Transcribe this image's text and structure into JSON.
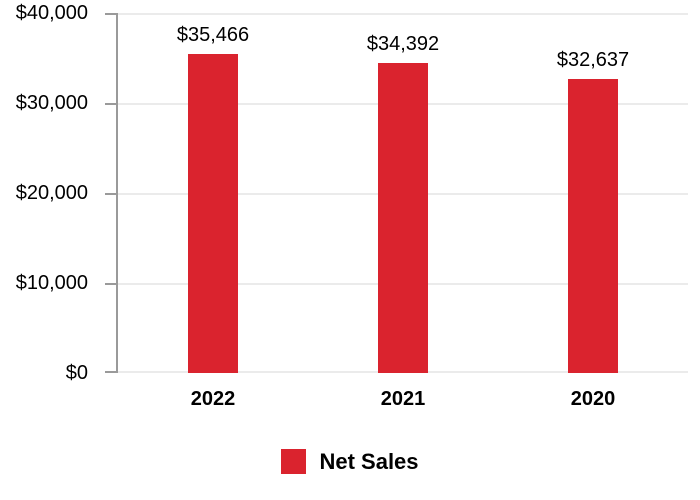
{
  "chart_data": {
    "type": "bar",
    "title": "",
    "xlabel": "",
    "ylabel": "",
    "categories": [
      "2022",
      "2021",
      "2020"
    ],
    "values": [
      35466,
      34392,
      32637
    ],
    "value_labels": [
      "$35,466",
      "$34,392",
      "$32,637"
    ],
    "series": [
      {
        "name": "Net Sales",
        "values": [
          35466,
          34392,
          32637
        ]
      }
    ],
    "series_name": "Net Sales",
    "ylim": [
      0,
      40000
    ],
    "ytick_interval": 10000,
    "ytick_labels_top_to_bottom": [
      "$40,000",
      "$30,000",
      "$20,000",
      "$10,000",
      "$0"
    ],
    "grid": true,
    "legend_position": "bottom-center"
  },
  "colors": {
    "bar": "#da232e",
    "axis": "#9a9a9a",
    "gridline": "#ebebeb",
    "text": "#000000",
    "background": "#ffffff"
  }
}
